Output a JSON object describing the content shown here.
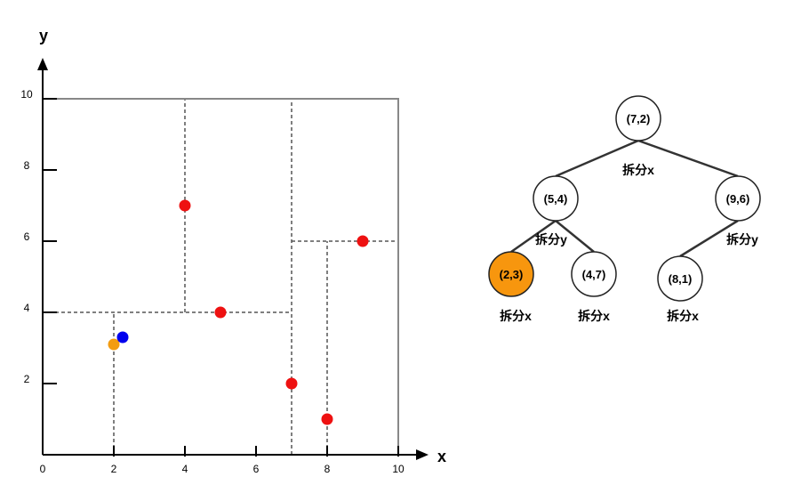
{
  "plot": {
    "x_axis_label": "x",
    "y_axis_label": "y",
    "x_ticks": [
      "0",
      "2",
      "4",
      "6",
      "8",
      "10"
    ],
    "y_ticks": [
      "2",
      "4",
      "6",
      "8",
      "10"
    ],
    "xlim": [
      0,
      10
    ],
    "ylim": [
      0,
      10
    ],
    "boundary": [
      [
        0,
        10
      ],
      [
        10,
        10
      ],
      [
        10,
        0
      ]
    ],
    "split_lines": [
      {
        "x1": 7,
        "y1": 0,
        "x2": 7,
        "y2": 10
      },
      {
        "x1": 0,
        "y1": 4,
        "x2": 7,
        "y2": 4
      },
      {
        "x1": 4,
        "y1": 4,
        "x2": 4,
        "y2": 10
      },
      {
        "x1": 2,
        "y1": 0,
        "x2": 2,
        "y2": 4
      },
      {
        "x1": 7,
        "y1": 6,
        "x2": 10,
        "y2": 6
      },
      {
        "x1": 8,
        "y1": 0,
        "x2": 8,
        "y2": 6
      }
    ],
    "points": [
      {
        "x": 4,
        "y": 7,
        "color": "#ee1111"
      },
      {
        "x": 5,
        "y": 4,
        "color": "#ee1111"
      },
      {
        "x": 9,
        "y": 6,
        "color": "#ee1111"
      },
      {
        "x": 7,
        "y": 2,
        "color": "#ee1111"
      },
      {
        "x": 8,
        "y": 1,
        "color": "#ee1111"
      },
      {
        "x": 2,
        "y": 3.1,
        "color": "#f39c12"
      },
      {
        "x": 2.25,
        "y": 3.3,
        "color": "#0000ee"
      }
    ]
  },
  "tree": {
    "highlight_color": "#f7960e",
    "nodes": [
      {
        "id": "n72",
        "label": "(7,2)",
        "highlight": false
      },
      {
        "id": "n54",
        "label": "(5,4)",
        "highlight": false
      },
      {
        "id": "n96",
        "label": "(9,6)",
        "highlight": false
      },
      {
        "id": "n23",
        "label": "(2,3)",
        "highlight": true
      },
      {
        "id": "n47",
        "label": "(4,7)",
        "highlight": false
      },
      {
        "id": "n81",
        "label": "(8,1)",
        "highlight": false
      }
    ],
    "edges": [
      [
        "n72",
        "n54"
      ],
      [
        "n72",
        "n96"
      ],
      [
        "n54",
        "n23"
      ],
      [
        "n54",
        "n47"
      ],
      [
        "n96",
        "n81"
      ]
    ],
    "split_labels": {
      "n72": "拆分x",
      "n54": "拆分y",
      "n96": "拆分y",
      "n23": "拆分x",
      "n47": "拆分x",
      "n81": "拆分x"
    }
  }
}
